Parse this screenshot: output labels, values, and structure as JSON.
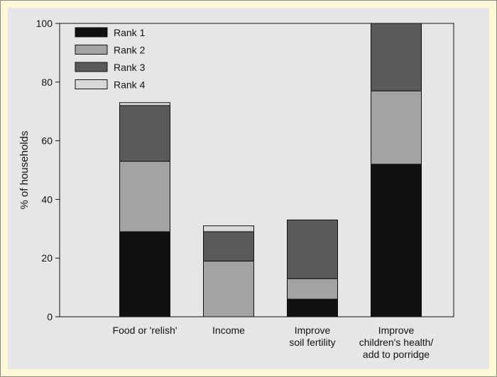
{
  "chart_data": {
    "type": "bar",
    "stacked": true,
    "title": "",
    "xlabel": "",
    "ylabel": "% of households",
    "ylim": [
      0,
      100
    ],
    "yticks": [
      0,
      20,
      40,
      60,
      80,
      100
    ],
    "grid": false,
    "legend_position": "top-left",
    "categories": [
      [
        "Food or 'relish'"
      ],
      [
        "Income"
      ],
      [
        "Improve",
        "soil fertility"
      ],
      [
        "Improve",
        "children's health/",
        "add to porridge"
      ]
    ],
    "series": [
      {
        "name": "Rank 1",
        "color": "#111111",
        "values": [
          29,
          0,
          6,
          52
        ]
      },
      {
        "name": "Rank 2",
        "color": "#a3a3a3",
        "values": [
          24,
          19,
          7,
          25
        ]
      },
      {
        "name": "Rank 3",
        "color": "#5a5a5a",
        "values": [
          19,
          10,
          20,
          23
        ]
      },
      {
        "name": "Rank 4",
        "color": "#d8d8d8",
        "values": [
          1,
          2,
          0,
          0
        ]
      }
    ]
  }
}
